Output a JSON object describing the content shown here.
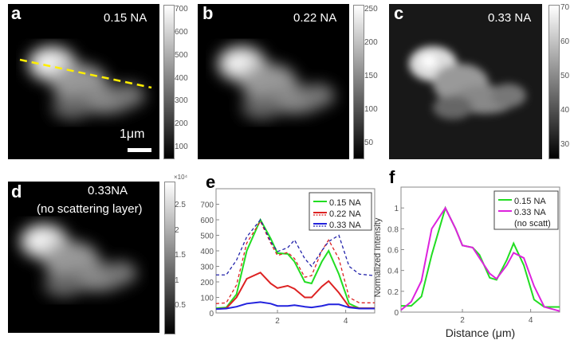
{
  "panels": {
    "a": {
      "label": "a",
      "na": "0.15 NA",
      "scalebar": "1μm",
      "colorbar": [
        "700",
        "600",
        "500",
        "400",
        "300",
        "200",
        "100"
      ]
    },
    "b": {
      "label": "b",
      "na": "0.22 NA",
      "colorbar": [
        "250",
        "200",
        "150",
        "100",
        "50"
      ]
    },
    "c": {
      "label": "c",
      "na": "0.33 NA",
      "colorbar": [
        "70",
        "60",
        "50",
        "40",
        "30"
      ]
    },
    "d": {
      "label": "d",
      "na": "0.33NA",
      "note": "(no scattering layer)",
      "colorbar_exp": "×10⁴",
      "colorbar": [
        "2.5",
        "2",
        "1.5",
        "1",
        "0.5"
      ]
    },
    "e": {
      "label": "e"
    },
    "f": {
      "label": "f"
    }
  },
  "colors": {
    "green": "#22dd22",
    "red": "#dd2222",
    "blue": "#2222dd",
    "magenta": "#dd22dd",
    "yellow_line": "#ffee00"
  },
  "chart_data": [
    {
      "type": "line",
      "panel": "e",
      "xlim": [
        0.2,
        4.85
      ],
      "ylim": [
        0,
        800
      ],
      "xticks": [
        "2",
        "4"
      ],
      "yticks": [
        "0",
        "100",
        "200",
        "300",
        "400",
        "500",
        "600",
        "700"
      ],
      "legend_placement": "top-right",
      "x": [
        0.2,
        0.5,
        0.8,
        1.1,
        1.5,
        1.8,
        2.0,
        2.3,
        2.5,
        2.8,
        3.0,
        3.3,
        3.5,
        3.8,
        4.1,
        4.4,
        4.85
      ],
      "series": [
        {
          "name": "0.15 NA",
          "style": "solid",
          "color": "#22dd22",
          "values": [
            30,
            35,
            120,
            400,
            600,
            480,
            385,
            380,
            330,
            200,
            190,
            330,
            400,
            250,
            60,
            30,
            30
          ]
        },
        {
          "name": "0.22 NA",
          "style": "solid",
          "color": "#dd2222",
          "values": [
            25,
            30,
            100,
            220,
            260,
            190,
            160,
            175,
            155,
            100,
            100,
            170,
            205,
            130,
            40,
            30,
            30
          ]
        },
        {
          "name": "0.22 NA",
          "style": "dashed",
          "color": "#dd2222",
          "values": [
            60,
            65,
            180,
            450,
            590,
            450,
            370,
            390,
            350,
            230,
            240,
            400,
            470,
            350,
            100,
            65,
            65
          ]
        },
        {
          "name": "0.33 NA",
          "style": "solid",
          "color": "#2222dd",
          "values": [
            25,
            28,
            40,
            60,
            70,
            60,
            45,
            45,
            50,
            40,
            35,
            45,
            55,
            55,
            35,
            28,
            28
          ]
        },
        {
          "name": "0.33 NA",
          "style": "dashed",
          "color": "#2222aa",
          "values": [
            245,
            245,
            340,
            490,
            600,
            460,
            395,
            420,
            470,
            350,
            300,
            400,
            460,
            500,
            300,
            250,
            240
          ]
        }
      ],
      "legend": [
        "0.15 NA",
        "0.22 NA",
        "0.33 NA"
      ]
    },
    {
      "type": "line",
      "panel": "f",
      "xlim": [
        0.2,
        4.85
      ],
      "ylim": [
        0,
        1.2
      ],
      "xlabel": "Distance (μm)",
      "ylabel": "Normalized Intensity",
      "xticks": [
        "2",
        "4"
      ],
      "yticks": [
        "0",
        "0.2",
        "0.4",
        "0.6",
        "0.8",
        "1"
      ],
      "legend_placement": "top-right",
      "x": [
        0.2,
        0.5,
        0.8,
        1.1,
        1.5,
        1.8,
        2.0,
        2.3,
        2.5,
        2.8,
        3.0,
        3.3,
        3.5,
        3.8,
        4.1,
        4.4,
        4.85
      ],
      "series": [
        {
          "name": "0.15 NA",
          "color": "#22dd22",
          "values": [
            0.06,
            0.06,
            0.15,
            0.55,
            1.0,
            0.8,
            0.64,
            0.62,
            0.55,
            0.33,
            0.31,
            0.5,
            0.66,
            0.45,
            0.12,
            0.05,
            0.05
          ]
        },
        {
          "name": "0.33 NA (no scatt)",
          "color": "#dd22dd",
          "values": [
            0.02,
            0.1,
            0.3,
            0.8,
            1.0,
            0.8,
            0.64,
            0.62,
            0.52,
            0.37,
            0.32,
            0.45,
            0.57,
            0.52,
            0.25,
            0.05,
            0.01
          ]
        }
      ],
      "legend": [
        "0.15 NA",
        "0.33 NA",
        "(no scatt)"
      ]
    }
  ]
}
